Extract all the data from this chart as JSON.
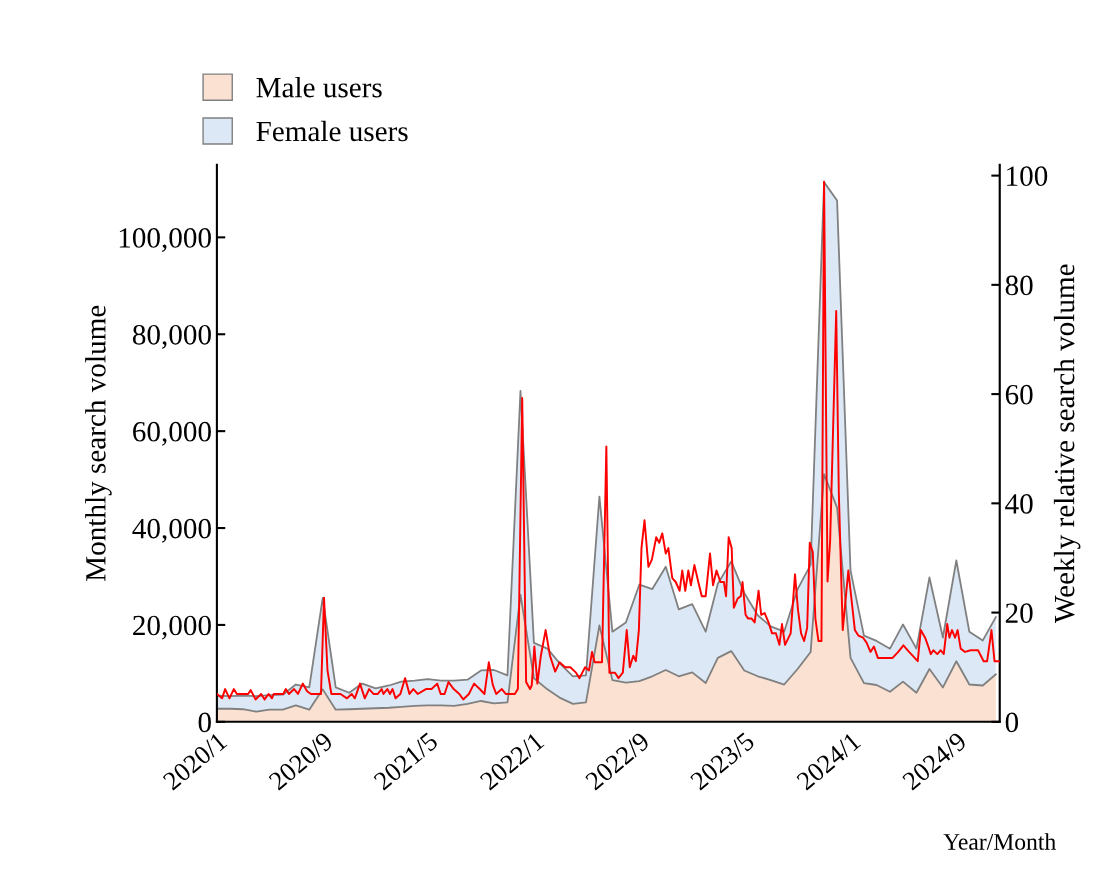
{
  "chart_data": {
    "type": "area",
    "stacked": true,
    "xlabel": "Year/Month",
    "ylabel": "Monthly search volume",
    "y2label": "Weekly relative search volume",
    "legend": "top",
    "xlim": [
      "2020-01-01",
      "2024-12-10"
    ],
    "xticks": [
      {
        "value": "2020-01",
        "label": "2020/1"
      },
      {
        "value": "2020-09",
        "label": "2020/9"
      },
      {
        "value": "2021-05",
        "label": "2021/5"
      },
      {
        "value": "2022-01",
        "label": "2022/1"
      },
      {
        "value": "2022-09",
        "label": "2022/9"
      },
      {
        "value": "2023-05",
        "label": "2023/5"
      },
      {
        "value": "2024-01",
        "label": "2024/1"
      },
      {
        "value": "2024-09",
        "label": "2024/9"
      }
    ],
    "ylim": [
      0,
      115000
    ],
    "yticks": [
      0,
      {
        "value": 20000,
        "label": "20,000"
      },
      {
        "value": 40000,
        "label": "40,000"
      },
      {
        "value": 60000,
        "label": "60,000"
      },
      {
        "value": 80000,
        "label": "80,000"
      },
      {
        "value": 100000,
        "label": "100,000"
      }
    ],
    "y2lim": [
      0,
      102
    ],
    "y2ticks": [
      0,
      20,
      40,
      60,
      80,
      100
    ],
    "x": [
      "2020-01",
      "2020-02",
      "2020-03",
      "2020-04",
      "2020-05",
      "2020-06",
      "2020-07",
      "2020-08",
      "2020-09",
      "2020-10",
      "2020-11",
      "2020-12",
      "2021-01",
      "2021-02",
      "2021-03",
      "2021-04",
      "2021-05",
      "2021-06",
      "2021-07",
      "2021-08",
      "2021-09",
      "2021-10",
      "2021-11",
      "2021-12",
      "2022-01",
      "2022-02",
      "2022-03",
      "2022-04",
      "2022-05",
      "2022-06",
      "2022-07",
      "2022-08",
      "2022-09",
      "2022-10",
      "2022-11",
      "2022-12",
      "2023-01",
      "2023-02",
      "2023-03",
      "2023-04",
      "2023-05",
      "2023-06",
      "2023-07",
      "2023-08",
      "2023-09",
      "2023-10",
      "2023-11",
      "2023-12",
      "2024-01",
      "2024-02",
      "2024-03",
      "2024-04",
      "2024-05",
      "2024-06",
      "2024-07",
      "2024-08",
      "2024-09",
      "2024-10",
      "2024-11",
      "2024-12"
    ],
    "series": [
      {
        "name": "Male users",
        "color": "#fbe1d2",
        "values": [
          2700,
          2700,
          2600,
          2100,
          2500,
          2500,
          3400,
          2500,
          6700,
          2500,
          2600,
          2700,
          2800,
          2900,
          3100,
          3300,
          3400,
          3400,
          3300,
          3700,
          4300,
          3800,
          4000,
          26200,
          9000,
          6700,
          5000,
          3700,
          4000,
          19900,
          8600,
          8100,
          8400,
          9400,
          10700,
          9400,
          10200,
          8000,
          13200,
          14600,
          10600,
          9400,
          8600,
          7700,
          10900,
          14400,
          51100,
          44200,
          13200,
          8000,
          7600,
          6200,
          8300,
          6000,
          10900,
          7100,
          12500,
          7700,
          7500,
          9800
        ]
      },
      {
        "name": "Female users",
        "color": "#dce8f5",
        "values": [
          2700,
          2600,
          2800,
          3200,
          3000,
          3100,
          4300,
          4600,
          18900,
          4600,
          3400,
          5200,
          4100,
          4600,
          5200,
          5200,
          5400,
          5100,
          5200,
          5000,
          6300,
          6900,
          5600,
          42100,
          7300,
          8400,
          7100,
          5700,
          5600,
          26600,
          10000,
          12400,
          19900,
          18000,
          21300,
          13800,
          14100,
          10600,
          15300,
          18500,
          16000,
          12600,
          11100,
          10900,
          16500,
          18000,
          60300,
          63400,
          18000,
          9800,
          9100,
          8900,
          11800,
          9100,
          18900,
          10300,
          20800,
          10900,
          9300,
          11800
        ]
      },
      {
        "type": "line",
        "axis": "y2",
        "color": "#ff0000",
        "x": [
          "2020-01-01",
          "2020-01-13",
          "2020-01-20",
          "2020-01-30",
          "2020-02-09",
          "2020-02-16",
          "2020-03-13",
          "2020-03-19",
          "2020-03-30",
          "2020-04-12",
          "2020-04-20",
          "2020-04-29",
          "2020-05-07",
          "2020-05-11",
          "2020-06-02",
          "2020-06-08",
          "2020-06-15",
          "2020-06-27",
          "2020-07-06",
          "2020-07-17",
          "2020-07-27",
          "2020-08-05",
          "2020-08-28",
          "2020-09-04",
          "2020-09-12",
          "2020-09-21",
          "2020-10-12",
          "2020-10-27",
          "2020-11-07",
          "2020-11-14",
          "2020-11-26",
          "2020-12-07",
          "2020-12-17",
          "2020-12-27",
          "2021-01-06",
          "2021-01-15",
          "2021-01-19",
          "2021-01-28",
          "2021-02-03",
          "2021-02-09",
          "2021-02-16",
          "2021-02-27",
          "2021-03-10",
          "2021-03-20",
          "2021-03-29",
          "2021-04-08",
          "2021-04-27",
          "2021-05-10",
          "2021-05-23",
          "2021-05-31",
          "2021-06-09",
          "2021-06-18",
          "2021-06-30",
          "2021-07-13",
          "2021-07-22",
          "2021-08-04",
          "2021-08-16",
          "2021-08-29",
          "2021-09-09",
          "2021-09-19",
          "2021-09-28",
          "2021-10-06",
          "2021-10-19",
          "2021-10-28",
          "2021-11-18",
          "2021-11-25",
          "2021-12-05",
          "2021-12-14",
          "2021-12-23",
          "2021-12-27",
          "2022-01-02",
          "2022-01-09",
          "2022-01-17",
          "2022-01-28",
          "2022-02-07",
          "2022-02-19",
          "2022-03-01",
          "2022-03-14",
          "2022-03-26",
          "2022-04-08",
          "2022-04-16",
          "2022-04-29",
          "2022-05-08",
          "2022-05-15",
          "2022-05-21",
          "2022-05-29",
          "2022-06-07",
          "2022-06-17",
          "2022-06-24",
          "2022-07-07",
          "2022-07-15",
          "2022-07-25",
          "2022-08-03",
          "2022-08-10",
          "2022-08-18",
          "2022-08-24",
          "2022-08-31",
          "2022-09-06",
          "2022-09-13",
          "2022-09-22",
          "2022-09-30",
          "2022-10-10",
          "2022-10-17",
          "2022-10-24",
          "2022-11-01",
          "2022-11-07",
          "2022-11-16",
          "2022-11-24",
          "2022-12-03",
          "2022-12-09",
          "2022-12-16",
          "2022-12-23",
          "2022-12-29",
          "2023-01-06",
          "2023-01-15",
          "2023-01-23",
          "2023-02-01",
          "2023-02-11",
          "2023-02-18",
          "2023-02-26",
          "2023-03-07",
          "2023-03-15",
          "2023-03-20",
          "2023-03-26",
          "2023-04-02",
          "2023-04-07",
          "2023-04-16",
          "2023-04-23",
          "2023-04-27",
          "2023-05-04",
          "2023-05-10",
          "2023-05-18",
          "2023-05-25",
          "2023-06-03",
          "2023-06-09",
          "2023-06-17",
          "2023-06-26",
          "2023-07-04",
          "2023-07-13",
          "2023-07-21",
          "2023-07-27",
          "2023-08-03",
          "2023-08-16",
          "2023-08-26",
          "2023-09-02",
          "2023-09-09",
          "2023-09-16",
          "2023-09-23",
          "2023-09-29",
          "2023-10-06",
          "2023-10-12",
          "2023-10-19",
          "2023-10-26",
          "2023-11-01",
          "2023-11-09",
          "2023-11-15",
          "2023-11-29",
          "2023-12-05",
          "2023-12-14",
          "2023-12-27",
          "2024-01-11",
          "2024-01-19",
          "2024-01-30",
          "2024-02-07",
          "2024-02-16",
          "2024-02-24",
          "2024-03-04",
          "2024-04-07",
          "2024-04-20",
          "2024-05-02",
          "2024-05-15",
          "2024-05-28",
          "2024-06-04",
          "2024-06-11",
          "2024-06-21",
          "2024-06-27",
          "2024-07-04",
          "2024-07-10",
          "2024-07-19",
          "2024-07-27",
          "2024-08-03",
          "2024-08-11",
          "2024-08-16",
          "2024-08-22",
          "2024-08-29",
          "2024-09-04",
          "2024-09-11",
          "2024-09-21",
          "2024-10-04",
          "2024-10-21",
          "2024-11-03",
          "2024-11-11",
          "2024-11-21",
          "2024-11-28",
          "2024-12-10"
        ],
        "values": [
          5.1,
          4.3,
          6.0,
          4.3,
          6.0,
          5.1,
          5.1,
          5.8,
          4.1,
          5.1,
          4.1,
          5.1,
          4.3,
          5.1,
          5.1,
          6.0,
          5.1,
          6.0,
          5.1,
          7.0,
          5.6,
          5.1,
          5.1,
          22.7,
          9.4,
          5.1,
          5.1,
          4.3,
          5.1,
          4.3,
          7.0,
          4.3,
          6.0,
          5.1,
          5.1,
          6.0,
          5.1,
          6.0,
          5.1,
          6.0,
          4.3,
          5.1,
          8.0,
          5.1,
          6.0,
          5.1,
          6.0,
          6.0,
          7.0,
          5.1,
          5.1,
          7.3,
          6.0,
          5.1,
          4.1,
          5.1,
          7.0,
          6.0,
          5.1,
          10.9,
          6.8,
          5.1,
          6.0,
          5.1,
          5.1,
          6.0,
          59.3,
          7.3,
          6.0,
          6.7,
          13.8,
          7.0,
          12.1,
          16.8,
          12.1,
          9.2,
          10.9,
          10.0,
          10.0,
          9.0,
          8.0,
          10.0,
          9.4,
          12.8,
          10.9,
          10.9,
          10.9,
          50.4,
          9.0,
          9.0,
          8.0,
          9.0,
          16.8,
          10.0,
          12.1,
          11.1,
          16.8,
          31.8,
          36.9,
          28.4,
          29.7,
          33.8,
          32.8,
          34.5,
          30.8,
          31.8,
          26.3,
          25.6,
          24.0,
          27.7,
          24.0,
          27.7,
          25.0,
          28.7,
          25.6,
          23.0,
          23.0,
          30.8,
          25.0,
          27.7,
          25.6,
          25.6,
          23.0,
          33.8,
          31.8,
          20.9,
          22.6,
          23.0,
          25.6,
          19.6,
          18.9,
          18.9,
          18.2,
          24.0,
          19.6,
          19.9,
          18.2,
          16.2,
          16.2,
          14.1,
          17.9,
          14.1,
          16.2,
          27.0,
          20.4,
          16.2,
          14.8,
          17.2,
          32.8,
          31.1,
          18.9,
          14.8,
          14.8,
          98.9,
          25.7,
          33.1,
          75.2,
          42.0,
          16.8,
          27.7,
          16.8,
          15.8,
          15.4,
          14.5,
          12.8,
          13.8,
          11.7,
          11.7,
          12.8,
          14.0,
          12.8,
          11.7,
          11.1,
          16.8,
          15.4,
          14.1,
          12.4,
          13.1,
          12.4,
          13.1,
          12.4,
          17.9,
          15.4,
          16.8,
          15.4,
          16.8,
          13.4,
          12.8,
          13.1,
          13.1,
          11.1,
          11.1,
          16.8,
          11.1,
          11.1
        ]
      }
    ]
  }
}
